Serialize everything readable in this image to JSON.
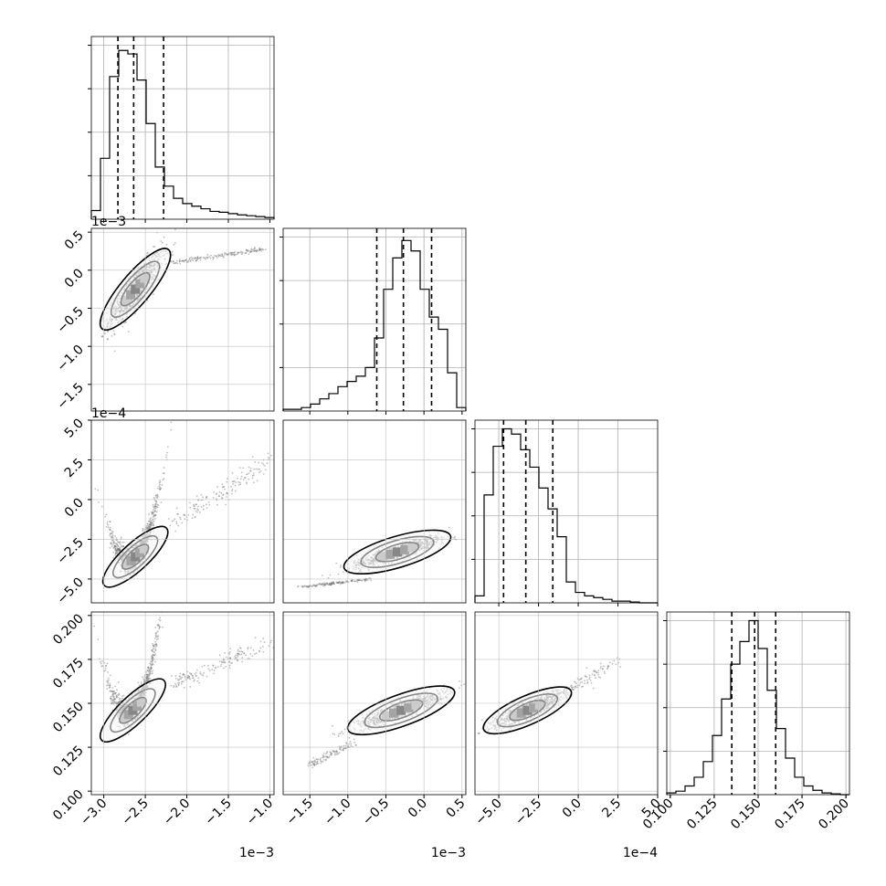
{
  "chart_data": {
    "type": "corner",
    "grid": true,
    "quantiles_marked": [
      "16%",
      "50%",
      "84%"
    ],
    "parameters": [
      {
        "index": 0,
        "range": [
          -3.15,
          -0.95
        ],
        "ticks": [
          -3.0,
          -2.5,
          -2.0,
          -1.5,
          -1.0
        ],
        "tick_labels": [
          "−3.0",
          "−2.5",
          "−2.0",
          "−1.5",
          "−1.0"
        ],
        "offset_label": "1e−3",
        "quantiles": [
          -2.83,
          -2.64,
          -2.28
        ],
        "histogram": [
          0.05,
          0.35,
          0.82,
          0.97,
          0.95,
          0.8,
          0.55,
          0.3,
          0.19,
          0.12,
          0.09,
          0.075,
          0.06,
          0.045,
          0.04,
          0.032,
          0.025,
          0.02,
          0.015,
          0.01
        ],
        "hist_ticks": [
          0.25,
          0.5,
          0.75,
          1.0
        ]
      },
      {
        "index": 1,
        "range": [
          -1.85,
          0.55
        ],
        "ticks": [
          -1.5,
          -1.0,
          -0.5,
          0.0,
          0.5
        ],
        "tick_labels": [
          "−1.5",
          "−1.0",
          "−0.5",
          "0.0",
          "0.5"
        ],
        "offset_label": "1e−3",
        "quantiles": [
          -0.62,
          -0.27,
          0.1
        ],
        "histogram": [
          0.01,
          0.01,
          0.02,
          0.04,
          0.07,
          0.1,
          0.14,
          0.17,
          0.2,
          0.25,
          0.42,
          0.7,
          0.88,
          0.98,
          0.92,
          0.7,
          0.54,
          0.47,
          0.22,
          0.02
        ],
        "hist_ticks": [
          0.25,
          0.5,
          0.75,
          1.0
        ]
      },
      {
        "index": 2,
        "range": [
          -6.5,
          5.0
        ],
        "ticks": [
          -5.0,
          -2.5,
          0.0,
          2.5,
          5.0
        ],
        "tick_labels": [
          "−5.0",
          "−2.5",
          "0.0",
          "2.5",
          "5.0"
        ],
        "offset_label": "1e−4",
        "quantiles": [
          -4.7,
          -3.3,
          -1.6
        ],
        "histogram": [
          0.04,
          0.62,
          0.9,
          1.0,
          0.97,
          0.88,
          0.78,
          0.66,
          0.54,
          0.38,
          0.12,
          0.06,
          0.04,
          0.03,
          0.02,
          0.01,
          0.01,
          0.005,
          0.0,
          0.0
        ],
        "hist_ticks": [
          0.25,
          0.5,
          0.75,
          1.0
        ]
      },
      {
        "index": 3,
        "range": [
          0.098,
          0.202
        ],
        "ticks": [
          0.1,
          0.125,
          0.15,
          0.175,
          0.2
        ],
        "tick_labels": [
          "0.100",
          "0.125",
          "0.150",
          "0.175",
          "0.200"
        ],
        "offset_label": "",
        "quantiles": [
          0.135,
          0.148,
          0.16
        ],
        "histogram": [
          0.01,
          0.02,
          0.05,
          0.1,
          0.19,
          0.34,
          0.55,
          0.75,
          0.88,
          1.0,
          0.84,
          0.6,
          0.38,
          0.21,
          0.1,
          0.05,
          0.025,
          0.01,
          0.005,
          0.0
        ],
        "hist_ticks": [
          0.25,
          0.5,
          0.75,
          1.0
        ]
      }
    ],
    "pairs": [
      {
        "x": 0,
        "y": 1,
        "center": [
          -2.62,
          -0.25
        ],
        "spread": [
          0.16,
          0.26
        ],
        "curve": 0.00065,
        "tail": {
          "from": [
            -2.2,
            0.1
          ],
          "to": [
            -1.05,
            0.28
          ],
          "n": 160
        }
      },
      {
        "x": 0,
        "y": 2,
        "center": [
          -2.62,
          -3.6
        ],
        "spread": [
          0.15,
          0.9
        ],
        "curve": 2.4,
        "tail": {
          "from": [
            -2.2,
            -1.5
          ],
          "to": [
            -1.0,
            2.5
          ],
          "n": 150
        }
      },
      {
        "x": 0,
        "y": 3,
        "center": [
          -2.65,
          0.146
        ],
        "spread": [
          0.15,
          0.0085
        ],
        "curve": 0.025,
        "tail": {
          "from": [
            -2.2,
            0.16
          ],
          "to": [
            -1.0,
            0.185
          ],
          "n": 160
        }
      },
      {
        "x": 1,
        "y": 2,
        "center": [
          -0.35,
          -3.3
        ],
        "spread": [
          0.28,
          0.5
        ],
        "curve": 0.0,
        "tail": {
          "from": [
            -1.6,
            -5.5
          ],
          "to": [
            -0.7,
            -5.0
          ],
          "n": 150
        }
      },
      {
        "x": 1,
        "y": 3,
        "center": [
          -0.3,
          0.146
        ],
        "spread": [
          0.28,
          0.0055
        ],
        "curve": 0.0,
        "tail": {
          "from": [
            -1.5,
            0.115
          ],
          "to": [
            -0.9,
            0.128
          ],
          "n": 110
        }
      },
      {
        "x": 2,
        "y": 3,
        "center": [
          -3.2,
          0.146
        ],
        "spread": [
          1.1,
          0.0055
        ],
        "curve": 0.0,
        "tail": {
          "from": [
            -1.0,
            0.155
          ],
          "to": [
            2.5,
            0.175
          ],
          "n": 90
        }
      }
    ]
  }
}
